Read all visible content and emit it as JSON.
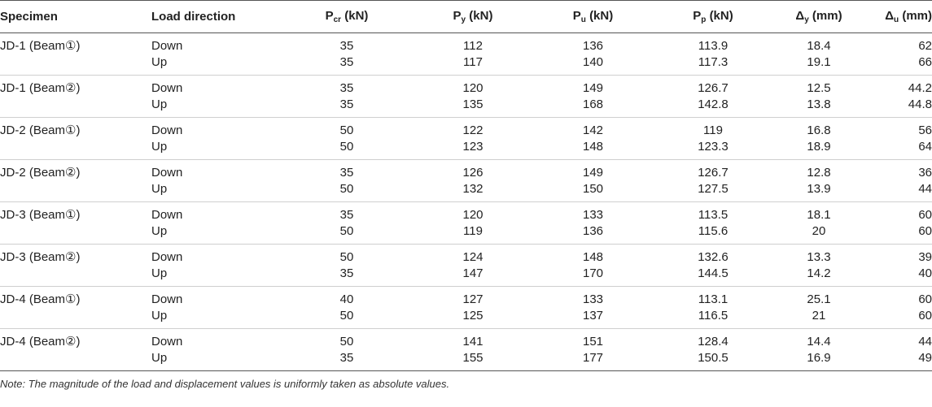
{
  "headers": {
    "specimen": "Specimen",
    "load_direction": "Load direction",
    "pcr": {
      "main": "P",
      "sub": "cr",
      "unit": "(kN)"
    },
    "py": {
      "main": "P",
      "sub": "y",
      "unit": "(kN)"
    },
    "pu": {
      "main": "P",
      "sub": "u",
      "unit": "(kN)"
    },
    "pp": {
      "main": "P",
      "sub": "p",
      "unit": "(kN)"
    },
    "dy": {
      "main": "Δ",
      "sub": "y",
      "unit": "(mm)"
    },
    "du": {
      "main": "Δ",
      "sub": "u",
      "unit": "(mm)"
    }
  },
  "rows": [
    {
      "specimen": "JD-1 (Beam①)",
      "down": {
        "dir": "Down",
        "pcr": "35",
        "py": "112",
        "pu": "136",
        "pp": "113.9",
        "dy": "18.4",
        "du": "62"
      },
      "up": {
        "dir": "Up",
        "pcr": "35",
        "py": "117",
        "pu": "140",
        "pp": "117.3",
        "dy": "19.1",
        "du": "66"
      }
    },
    {
      "specimen": "JD-1 (Beam②)",
      "down": {
        "dir": "Down",
        "pcr": "35",
        "py": "120",
        "pu": "149",
        "pp": "126.7",
        "dy": "12.5",
        "du": "44.2"
      },
      "up": {
        "dir": "Up",
        "pcr": "35",
        "py": "135",
        "pu": "168",
        "pp": "142.8",
        "dy": "13.8",
        "du": "44.8"
      }
    },
    {
      "specimen": "JD-2 (Beam①)",
      "down": {
        "dir": "Down",
        "pcr": "50",
        "py": "122",
        "pu": "142",
        "pp": "119",
        "dy": "16.8",
        "du": "56"
      },
      "up": {
        "dir": "Up",
        "pcr": "50",
        "py": "123",
        "pu": "148",
        "pp": "123.3",
        "dy": "18.9",
        "du": "64"
      }
    },
    {
      "specimen": "JD-2 (Beam②)",
      "down": {
        "dir": "Down",
        "pcr": "35",
        "py": "126",
        "pu": "149",
        "pp": "126.7",
        "dy": "12.8",
        "du": "36"
      },
      "up": {
        "dir": "Up",
        "pcr": "50",
        "py": "132",
        "pu": "150",
        "pp": "127.5",
        "dy": "13.9",
        "du": "44"
      }
    },
    {
      "specimen": "JD-3 (Beam①)",
      "down": {
        "dir": "Down",
        "pcr": "35",
        "py": "120",
        "pu": "133",
        "pp": "113.5",
        "dy": "18.1",
        "du": "60"
      },
      "up": {
        "dir": "Up",
        "pcr": "50",
        "py": "119",
        "pu": "136",
        "pp": "115.6",
        "dy": "20",
        "du": "60"
      }
    },
    {
      "specimen": "JD-3 (Beam②)",
      "down": {
        "dir": "Down",
        "pcr": "50",
        "py": "124",
        "pu": "148",
        "pp": "132.6",
        "dy": "13.3",
        "du": "39"
      },
      "up": {
        "dir": "Up",
        "pcr": "35",
        "py": "147",
        "pu": "170",
        "pp": "144.5",
        "dy": "14.2",
        "du": "40"
      }
    },
    {
      "specimen": "JD-4 (Beam①)",
      "down": {
        "dir": "Down",
        "pcr": "40",
        "py": "127",
        "pu": "133",
        "pp": "113.1",
        "dy": "25.1",
        "du": "60"
      },
      "up": {
        "dir": "Up",
        "pcr": "50",
        "py": "125",
        "pu": "137",
        "pp": "116.5",
        "dy": "21",
        "du": "60"
      }
    },
    {
      "specimen": "JD-4 (Beam②)",
      "down": {
        "dir": "Down",
        "pcr": "50",
        "py": "141",
        "pu": "151",
        "pp": "128.4",
        "dy": "14.4",
        "du": "44"
      },
      "up": {
        "dir": "Up",
        "pcr": "35",
        "py": "155",
        "pu": "177",
        "pp": "150.5",
        "dy": "16.9",
        "du": "49"
      }
    }
  ],
  "note": "Note: The magnitude of the load and displacement values is uniformly taken as absolute values."
}
